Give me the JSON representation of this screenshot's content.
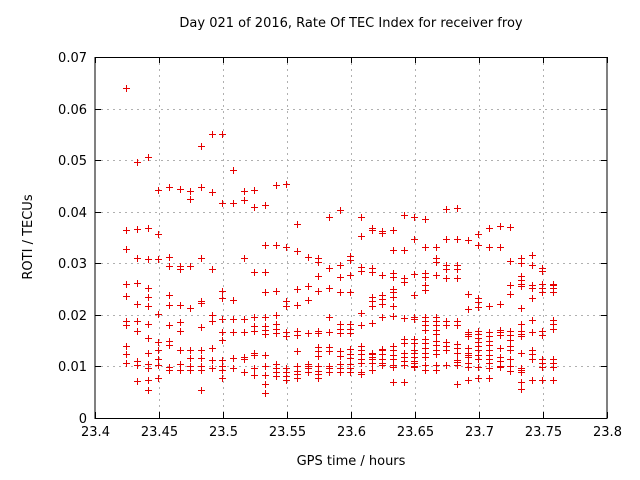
{
  "window": {
    "title": "gnuplot ROTI scatter plot"
  },
  "colors": {
    "marker": "#e60000",
    "grid": "#b0b0b0",
    "border": "#000000",
    "background": "#ffffff",
    "text": "#000000"
  },
  "chart_data": {
    "type": "scatter",
    "title": "Day 021 of 2016, Rate Of TEC Index for receiver froy",
    "xlabel": "GPS time / hours",
    "ylabel": "ROTI / TECUs",
    "xlim": [
      23.4,
      23.8
    ],
    "ylim": [
      0,
      0.07
    ],
    "xtick_values": [
      23.4,
      23.45,
      23.5,
      23.55,
      23.6,
      23.65,
      23.7,
      23.75,
      23.8
    ],
    "xtick_labels": [
      "23.4",
      "23.45",
      "23.5",
      "23.55",
      "23.6",
      "23.65",
      "23.7",
      "23.75",
      "23.8"
    ],
    "ytick_values": [
      0,
      0.01,
      0.02,
      0.03,
      0.04,
      0.05,
      0.06,
      0.07
    ],
    "ytick_labels": [
      "0",
      "0.01",
      "0.02",
      "0.03",
      "0.04",
      "0.05",
      "0.06",
      "0.07"
    ],
    "grid": true,
    "legend": "none",
    "marker": {
      "shape": "plus",
      "size": 7
    },
    "series": [
      {
        "name": "ROTI",
        "columns": [
          {
            "x": 23.4245,
            "ys": [
              0.0639,
              0.0365,
              0.0328,
              0.026,
              0.0237,
              0.0189,
              0.0181,
              0.014,
              0.0124,
              0.0106
            ]
          },
          {
            "x": 23.4328,
            "ys": [
              0.0496,
              0.0367,
              0.0311,
              0.0262,
              0.0221,
              0.0189,
              0.0169,
              0.0111,
              0.0102,
              0.0072
            ]
          },
          {
            "x": 23.4412,
            "ys": [
              0.0507,
              0.0369,
              0.0308,
              0.0252,
              0.0235,
              0.0218,
              0.0182,
              0.0155,
              0.0127,
              0.0105,
              0.0096,
              0.0073,
              0.0054
            ]
          },
          {
            "x": 23.4495,
            "ys": [
              0.0443,
              0.0357,
              0.0308,
              0.0202,
              0.0148,
              0.0131,
              0.0114,
              0.0103,
              0.0077
            ]
          },
          {
            "x": 23.4578,
            "ys": [
              0.0448,
              0.0312,
              0.0295,
              0.0239,
              0.0219,
              0.018,
              0.015,
              0.0141,
              0.0098,
              0.0093
            ]
          },
          {
            "x": 23.4662,
            "ys": [
              0.0445,
              0.0295,
              0.0289,
              0.0219,
              0.0186,
              0.0169,
              0.0132,
              0.0105,
              0.0094
            ]
          },
          {
            "x": 23.4745,
            "ys": [
              0.044,
              0.0425,
              0.0295,
              0.0213,
              0.0132,
              0.0117,
              0.01,
              0.0093
            ]
          },
          {
            "x": 23.4828,
            "ys": [
              0.0528,
              0.0448,
              0.031,
              0.0227,
              0.0223,
              0.0176,
              0.0132,
              0.0117,
              0.01,
              0.0093,
              0.0054
            ]
          },
          {
            "x": 23.4912,
            "ys": [
              0.0551,
              0.0439,
              0.0288,
              0.02,
              0.0189,
              0.0136,
              0.0113,
              0.0097
            ]
          },
          {
            "x": 23.4995,
            "ys": [
              0.0551,
              0.0416,
              0.0246,
              0.0232,
              0.0191,
              0.0167,
              0.0151,
              0.0113,
              0.01,
              0.0093,
              0.0077
            ]
          },
          {
            "x": 23.5078,
            "ys": [
              0.0481,
              0.0417,
              0.0228,
              0.0191,
              0.0167,
              0.0117,
              0.0097
            ]
          },
          {
            "x": 23.5162,
            "ys": [
              0.0441,
              0.0423,
              0.031,
              0.0191,
              0.0167,
              0.0119,
              0.0115,
              0.0089
            ]
          },
          {
            "x": 23.5245,
            "ys": [
              0.0443,
              0.041,
              0.0284,
              0.0196,
              0.0178,
              0.0169,
              0.0127,
              0.0122,
              0.0097,
              0.0083
            ]
          },
          {
            "x": 23.5328,
            "ys": [
              0.0413,
              0.0336,
              0.0284,
              0.0244,
              0.0196,
              0.0178,
              0.0171,
              0.0162,
              0.0122,
              0.01,
              0.0083,
              0.0065,
              0.0048
            ]
          },
          {
            "x": 23.5412,
            "ys": [
              0.0452,
              0.0336,
              0.0246,
              0.02,
              0.0182,
              0.0173,
              0.0164,
              0.0104,
              0.0096,
              0.0089,
              0.0081
            ]
          },
          {
            "x": 23.5495,
            "ys": [
              0.0453,
              0.0332,
              0.0226,
              0.0218,
              0.0167,
              0.0159,
              0.0096,
              0.0089,
              0.0081,
              0.0073
            ]
          },
          {
            "x": 23.5578,
            "ys": [
              0.0376,
              0.0324,
              0.025,
              0.022,
              0.0169,
              0.0161,
              0.0129,
              0.01,
              0.0092,
              0.0085,
              0.0077
            ]
          },
          {
            "x": 23.5662,
            "ys": [
              0.0312,
              0.0255,
              0.0228,
              0.0165,
              0.0104,
              0.01,
              0.0096,
              0.0089
            ]
          },
          {
            "x": 23.5745,
            "ys": [
              0.031,
              0.0303,
              0.0275,
              0.0247,
              0.0169,
              0.0165,
              0.0137,
              0.0129,
              0.0121,
              0.01,
              0.0092,
              0.0085,
              0.0077
            ]
          },
          {
            "x": 23.5828,
            "ys": [
              0.0389,
              0.029,
              0.0253,
              0.0196,
              0.0167,
              0.0137,
              0.0129,
              0.01,
              0.0096,
              0.0089
            ]
          },
          {
            "x": 23.5912,
            "ys": [
              0.0404,
              0.0297,
              0.0273,
              0.0244,
              0.0182,
              0.0173,
              0.0165,
              0.0129,
              0.0121,
              0.0104,
              0.0096,
              0.0089
            ]
          },
          {
            "x": 23.5995,
            "ys": [
              0.0315,
              0.0306,
              0.0277,
              0.0244,
              0.0182,
              0.0173,
              0.0165,
              0.0133,
              0.0125,
              0.0117,
              0.0104,
              0.0096,
              0.0089
            ]
          },
          {
            "x": 23.6078,
            "ys": [
              0.0389,
              0.0352,
              0.0293,
              0.0285,
              0.0203,
              0.018,
              0.014,
              0.0132,
              0.0124,
              0.0115,
              0.0107,
              0.009,
              0.0085
            ]
          },
          {
            "x": 23.6162,
            "ys": [
              0.0369,
              0.0365,
              0.0291,
              0.0283,
              0.0235,
              0.0227,
              0.0217,
              0.0184,
              0.0127,
              0.0124,
              0.0119,
              0.0115,
              0.0107,
              0.0094
            ]
          },
          {
            "x": 23.6245,
            "ys": [
              0.0363,
              0.0359,
              0.0277,
              0.0239,
              0.0231,
              0.0222,
              0.0196,
              0.0134,
              0.0132,
              0.0124,
              0.0115,
              0.0107,
              0.0103
            ]
          },
          {
            "x": 23.6328,
            "ys": [
              0.0365,
              0.0326,
              0.0281,
              0.0273,
              0.0251,
              0.0244,
              0.0235,
              0.0217,
              0.0198,
              0.0139,
              0.0131,
              0.0123,
              0.0115,
              0.0103,
              0.0098,
              0.007
            ]
          },
          {
            "x": 23.6412,
            "ys": [
              0.0393,
              0.0326,
              0.0271,
              0.0263,
              0.0194,
              0.0154,
              0.0146,
              0.0127,
              0.0119,
              0.0111,
              0.0103,
              0.007
            ]
          },
          {
            "x": 23.6495,
            "ys": [
              0.0389,
              0.0347,
              0.0279,
              0.0239,
              0.0196,
              0.0192,
              0.0154,
              0.0146,
              0.0132,
              0.0127,
              0.0119,
              0.0111,
              0.0107,
              0.01,
              0.0098
            ]
          },
          {
            "x": 23.6578,
            "ys": [
              0.0385,
              0.0332,
              0.0281,
              0.0273,
              0.0257,
              0.0249,
              0.0196,
              0.0188,
              0.018,
              0.0171,
              0.0154,
              0.0146,
              0.0136,
              0.0127,
              0.0119,
              0.0103,
              0.0094
            ]
          },
          {
            "x": 23.6662,
            "ys": [
              0.0332,
              0.0311,
              0.0303,
              0.0277,
              0.0196,
              0.0188,
              0.018,
              0.0171,
              0.0163,
              0.015,
              0.0142,
              0.0132,
              0.0124,
              0.0103,
              0.0094
            ]
          },
          {
            "x": 23.6745,
            "ys": [
              0.0406,
              0.0348,
              0.0297,
              0.0288,
              0.0271,
              0.0188,
              0.018,
              0.0147,
              0.0139,
              0.0131,
              0.0103
            ]
          },
          {
            "x": 23.6828,
            "ys": [
              0.0408,
              0.0348,
              0.0297,
              0.0288,
              0.0271,
              0.0188,
              0.018,
              0.0143,
              0.0135,
              0.0127,
              0.0112,
              0.0109,
              0.0103,
              0.0065
            ]
          },
          {
            "x": 23.6912,
            "ys": [
              0.0346,
              0.024,
              0.0212,
              0.0167,
              0.0163,
              0.0159,
              0.0135,
              0.0127,
              0.0123,
              0.0119,
              0.0107,
              0.0098,
              0.0074
            ]
          },
          {
            "x": 23.6995,
            "ys": [
              0.0357,
              0.0336,
              0.0232,
              0.0224,
              0.0216,
              0.0169,
              0.0163,
              0.0155,
              0.0147,
              0.0139,
              0.0131,
              0.0123,
              0.0115,
              0.0098,
              0.0078
            ]
          },
          {
            "x": 23.7078,
            "ys": [
              0.0368,
              0.0332,
              0.0217,
              0.0167,
              0.0159,
              0.015,
              0.0142,
              0.0131,
              0.0123,
              0.0115,
              0.0107,
              0.0096,
              0.0078
            ]
          },
          {
            "x": 23.7162,
            "ys": [
              0.0373,
              0.0332,
              0.0222,
              0.017,
              0.0167,
              0.0161,
              0.0135,
              0.0119,
              0.0111,
              0.0101,
              0.0099
            ]
          },
          {
            "x": 23.7245,
            "ys": [
              0.037,
              0.0305,
              0.0257,
              0.024,
              0.0169,
              0.0161,
              0.0152,
              0.0139,
              0.0131,
              0.0115,
              0.01,
              0.0092
            ]
          },
          {
            "x": 23.7328,
            "ys": [
              0.0311,
              0.0301,
              0.0276,
              0.0275,
              0.0267,
              0.0259,
              0.0255,
              0.0213,
              0.0182,
              0.0169,
              0.0162,
              0.0159,
              0.0127,
              0.0097,
              0.0093,
              0.009,
              0.007,
              0.0056
            ]
          },
          {
            "x": 23.7412,
            "ys": [
              0.0316,
              0.0297,
              0.0257,
              0.0253,
              0.0232,
              0.019,
              0.0167,
              0.0132,
              0.0124,
              0.0115,
              0.0074
            ]
          },
          {
            "x": 23.7495,
            "ys": [
              0.029,
              0.0286,
              0.026,
              0.0253,
              0.0244,
              0.0169,
              0.0161,
              0.0115,
              0.0107,
              0.0098,
              0.0074
            ]
          },
          {
            "x": 23.7578,
            "ys": [
              0.026,
              0.0257,
              0.0253,
              0.0244,
              0.019,
              0.0182,
              0.0173,
              0.0115,
              0.0107,
              0.0098,
              0.0074
            ]
          }
        ]
      }
    ]
  }
}
